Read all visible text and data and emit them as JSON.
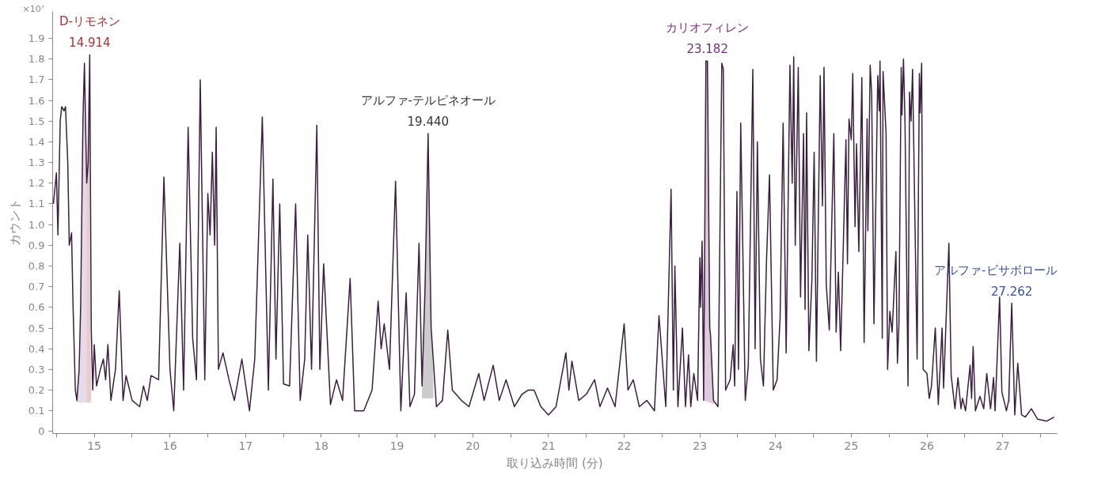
{
  "chart_data": {
    "type": "line",
    "xlabel": "取り込み時間 (分)",
    "ylabel": "カウント",
    "annotations": [
      "×10⁷",
      "14.914",
      "19.440",
      "23.182",
      "27.262"
    ],
    "xlim": [
      14.45,
      27.72
    ],
    "ylim": [
      -0.01,
      2.03
    ],
    "xticks": [
      {
        "value": 14.5,
        "label": null
      },
      15,
      {
        "value": 15.5,
        "label": null
      },
      16,
      {
        "value": 16.5,
        "label": null
      },
      17,
      {
        "value": 17.5,
        "label": null
      },
      18,
      {
        "value": 18.5,
        "label": null
      },
      19,
      {
        "value": 19.5,
        "label": null
      },
      20,
      {
        "value": 20.5,
        "label": null
      },
      21,
      {
        "value": 21.5,
        "label": null
      },
      22,
      {
        "value": 22.5,
        "label": null
      },
      23,
      {
        "value": 23.5,
        "label": null
      },
      24,
      {
        "value": 24.5,
        "label": null
      },
      25,
      {
        "value": 25.5,
        "label": null
      },
      26,
      {
        "value": 26.5,
        "label": null
      },
      27,
      {
        "value": 27.5,
        "label": null
      }
    ],
    "yticks": [
      0,
      0.1,
      0.2,
      0.3,
      0.4,
      0.5,
      0.6,
      0.7,
      0.8,
      0.9,
      {
        "value": 1.0,
        "label": "1.0"
      },
      1.1,
      1.2,
      1.3,
      1.4,
      1.5,
      1.6,
      1.7,
      1.8,
      1.9
    ],
    "grid": false,
    "marker": "none",
    "line_style": "solid",
    "series": [
      {
        "type": "area",
        "color": "#9b6aa8",
        "x": [
          14.76,
          14.8,
          14.82,
          14.85,
          14.87,
          14.9,
          14.9
        ],
        "values": [
          0.14,
          0.3,
          0.6,
          1.5,
          1.78,
          1.2,
          0.14
        ]
      },
      {
        "type": "area",
        "name": "D-リモネン",
        "color": "#a83232",
        "x": [
          14.9,
          14.9,
          14.93,
          14.95,
          14.96
        ],
        "values": [
          0.14,
          1.2,
          1.82,
          0.5,
          0.14
        ]
      },
      {
        "type": "area",
        "name": "アルファ-テルピネオール",
        "color": "#333333",
        "x": [
          19.33,
          19.33,
          19.37,
          19.41,
          19.45,
          19.48,
          19.48
        ],
        "values": [
          0.16,
          0.25,
          0.7,
          1.44,
          0.5,
          0.25,
          0.16
        ]
      },
      {
        "type": "area",
        "name": "カリオフィレン",
        "color": "#7a2e7a",
        "x": [
          23.05,
          23.08,
          23.1,
          23.14,
          23.19
        ],
        "values": [
          0.15,
          1.79,
          1.79,
          0.47,
          0.13
        ]
      },
      {
        "type": "area",
        "name": "アルファ-ビサボロール",
        "color": "#3d4fa0",
        "x": [
          27.08,
          27.1,
          27.1
        ],
        "values": [
          0.15,
          0.45,
          0.13
        ]
      },
      {
        "color": "#3b1f3f",
        "x": [
          14.46,
          14.5,
          14.52,
          14.55,
          14.57,
          14.6,
          14.62,
          14.65,
          14.67,
          14.7,
          14.72,
          14.75,
          14.77,
          14.8,
          14.82,
          14.85,
          14.87,
          14.9,
          14.92,
          14.94,
          14.96,
          14.98,
          15.0,
          15.03,
          15.08,
          15.12,
          15.15,
          15.18,
          15.22,
          15.28,
          15.33,
          15.38,
          15.42,
          15.5,
          15.6,
          15.65,
          15.7,
          15.75,
          15.85,
          15.92,
          16.0,
          16.05,
          16.13,
          16.18,
          16.24,
          16.3,
          16.35,
          16.4,
          16.46,
          16.5,
          16.53,
          16.56,
          16.59,
          16.61,
          16.64,
          16.7,
          16.78,
          16.85,
          16.95,
          17.05,
          17.12,
          17.22,
          17.3,
          17.36,
          17.4,
          17.45,
          17.5,
          17.58,
          17.66,
          17.72,
          17.78,
          17.82,
          17.87,
          17.94,
          17.98,
          18.03,
          18.12,
          18.2,
          18.28,
          18.38,
          18.44,
          18.56,
          18.67,
          18.75,
          18.79,
          18.83,
          18.9,
          18.98,
          19.05,
          19.12,
          19.17,
          19.23,
          19.29,
          19.33,
          19.37,
          19.41,
          19.45,
          19.52,
          19.6,
          19.67,
          19.73,
          19.85,
          19.95,
          20.08,
          20.15,
          20.27,
          20.35,
          20.44,
          20.55,
          20.65,
          20.73,
          20.81,
          20.9,
          21.0,
          21.1,
          21.23,
          21.27,
          21.31,
          21.4,
          21.5,
          21.61,
          21.68,
          21.78,
          21.88,
          22.0,
          22.05,
          22.12,
          22.2,
          22.3,
          22.4,
          22.46,
          22.55,
          22.62,
          22.65,
          22.67,
          22.71,
          22.77,
          22.81,
          22.85,
          22.88,
          22.92,
          22.97,
          23.0,
          23.01,
          23.03,
          23.05,
          23.08,
          23.1,
          23.13,
          23.14,
          23.18,
          23.24,
          23.29,
          23.31,
          23.34,
          23.4,
          23.44,
          23.46,
          23.49,
          23.51,
          23.54,
          23.6,
          23.64,
          23.7,
          23.73,
          23.76,
          23.8,
          23.84,
          23.88,
          23.92,
          23.97,
          24.02,
          24.06,
          24.1,
          24.14,
          24.19,
          24.22,
          24.24,
          24.26,
          24.3,
          24.33,
          24.37,
          24.39,
          24.41,
          24.44,
          24.48,
          24.51,
          24.54,
          24.59,
          24.62,
          24.64,
          24.67,
          24.71,
          24.77,
          24.8,
          24.83,
          24.86,
          24.93,
          24.95,
          24.97,
          25.0,
          25.02,
          25.05,
          25.07,
          25.1,
          25.14,
          25.17,
          25.21,
          25.22,
          25.25,
          25.27,
          25.3,
          25.35,
          25.37,
          25.38,
          25.41,
          25.42,
          25.46,
          25.48,
          25.51,
          25.54,
          25.59,
          25.61,
          25.63,
          25.66,
          25.67,
          25.69,
          25.71,
          25.75,
          25.77,
          25.79,
          25.81,
          25.87,
          25.9,
          25.91,
          25.93,
          25.95,
          26.0,
          26.03,
          26.06,
          26.11,
          26.15,
          26.2,
          26.22,
          26.29,
          26.32,
          26.37,
          26.41,
          26.45,
          26.47,
          26.51,
          26.57,
          26.59,
          26.61,
          26.64,
          26.7,
          26.75,
          26.79,
          26.84,
          26.88,
          26.9,
          26.96,
          26.99,
          27.05,
          27.08,
          27.12,
          27.16,
          27.2,
          27.25,
          27.3,
          27.38,
          27.46,
          27.58,
          27.68
        ],
        "values": [
          1.1,
          1.25,
          0.95,
          1.5,
          1.57,
          1.55,
          1.57,
          1.3,
          0.9,
          0.96,
          0.6,
          0.2,
          0.15,
          0.3,
          0.6,
          1.5,
          1.78,
          1.2,
          1.3,
          1.82,
          0.5,
          0.2,
          0.42,
          0.22,
          0.3,
          0.35,
          0.25,
          0.42,
          0.15,
          0.3,
          0.68,
          0.15,
          0.27,
          0.15,
          0.12,
          0.22,
          0.15,
          0.27,
          0.25,
          1.23,
          0.3,
          0.1,
          0.91,
          0.2,
          1.47,
          0.45,
          0.25,
          1.7,
          0.25,
          1.15,
          0.95,
          1.35,
          0.9,
          1.47,
          0.3,
          0.38,
          0.25,
          0.15,
          0.35,
          0.1,
          0.35,
          1.52,
          0.2,
          1.22,
          0.35,
          1.1,
          0.23,
          0.22,
          1.1,
          0.15,
          0.35,
          0.95,
          0.3,
          1.48,
          0.3,
          0.81,
          0.13,
          0.25,
          0.15,
          0.74,
          0.1,
          0.1,
          0.2,
          0.63,
          0.4,
          0.52,
          0.3,
          1.21,
          0.1,
          0.67,
          0.12,
          0.18,
          0.91,
          0.22,
          0.7,
          1.44,
          0.5,
          0.12,
          0.15,
          0.49,
          0.2,
          0.15,
          0.12,
          0.28,
          0.15,
          0.32,
          0.15,
          0.25,
          0.12,
          0.18,
          0.2,
          0.2,
          0.12,
          0.08,
          0.12,
          0.38,
          0.2,
          0.34,
          0.15,
          0.18,
          0.25,
          0.12,
          0.21,
          0.12,
          0.52,
          0.2,
          0.25,
          0.12,
          0.15,
          0.1,
          0.56,
          0.12,
          1.17,
          0.2,
          0.8,
          0.12,
          0.5,
          0.12,
          0.37,
          0.12,
          0.28,
          0.15,
          0.84,
          0.6,
          0.92,
          0.15,
          1.79,
          1.79,
          0.5,
          0.47,
          0.15,
          0.12,
          1.78,
          1.75,
          0.2,
          0.25,
          0.42,
          0.22,
          1.16,
          0.3,
          1.49,
          0.15,
          0.32,
          1.75,
          0.4,
          1.4,
          0.35,
          0.22,
          0.82,
          1.24,
          0.2,
          0.25,
          0.55,
          1.49,
          0.38,
          1.77,
          1.2,
          1.81,
          0.9,
          1.76,
          0.65,
          1.44,
          0.59,
          1.54,
          0.39,
          0.73,
          1.35,
          0.34,
          1.72,
          1.09,
          1.76,
          0.71,
          0.49,
          1.44,
          0.48,
          0.77,
          0.39,
          1.41,
          0.81,
          1.51,
          1.41,
          1.73,
          0.99,
          1.39,
          0.87,
          1.71,
          0.43,
          1.51,
          0.97,
          1.77,
          1.63,
          0.52,
          1.72,
          1.55,
          1.79,
          0.45,
          1.74,
          1.44,
          0.3,
          0.58,
          0.48,
          0.87,
          0.33,
          0.52,
          1.76,
          1.53,
          1.8,
          1.5,
          0.22,
          1.64,
          1.5,
          1.75,
          0.35,
          1.73,
          1.54,
          1.78,
          0.3,
          0.28,
          0.16,
          0.22,
          0.5,
          0.13,
          0.5,
          0.21,
          0.91,
          0.27,
          0.11,
          0.26,
          0.11,
          0.16,
          0.1,
          0.32,
          0.16,
          0.41,
          0.1,
          0.17,
          0.11,
          0.28,
          0.11,
          0.26,
          0.1,
          0.65,
          0.19,
          0.1,
          0.15,
          0.62,
          0.08,
          0.33,
          0.08,
          0.07,
          0.11,
          0.06,
          0.05,
          0.07
        ]
      }
    ]
  }
}
